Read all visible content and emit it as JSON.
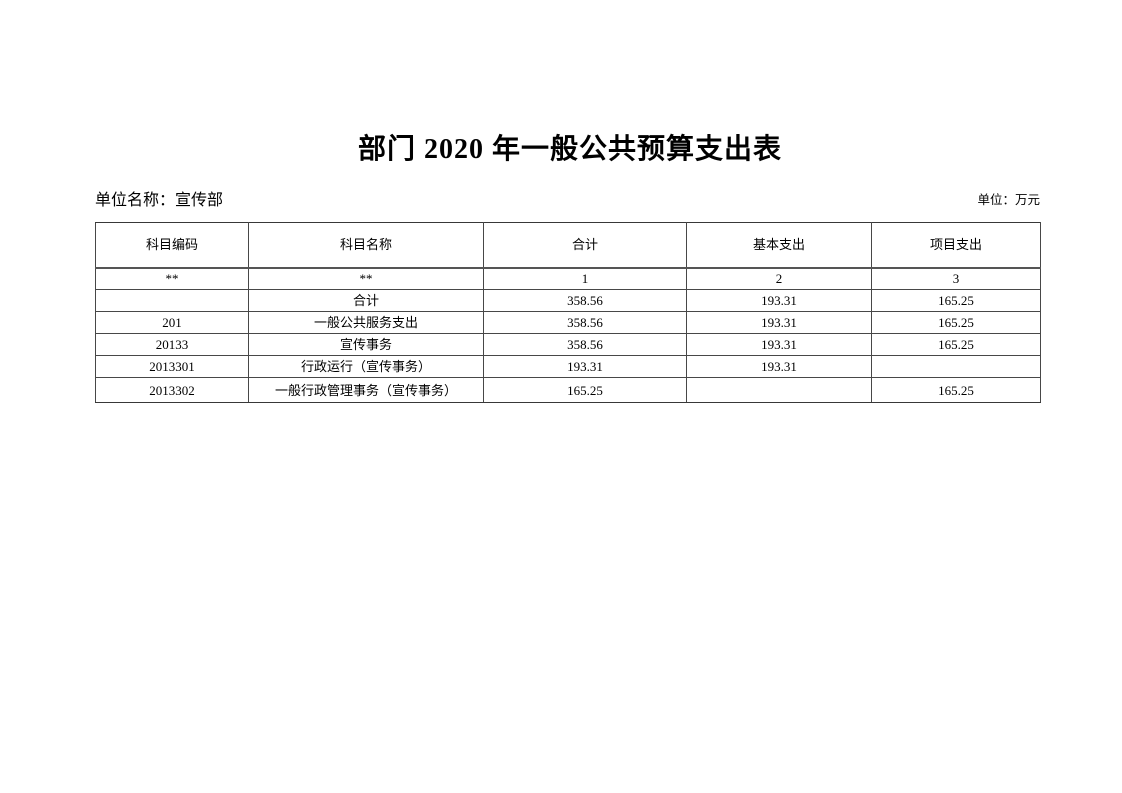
{
  "page": {
    "title": "部门 2020 年一般公共预算支出表",
    "unit_name": "单位名称：宣传部",
    "unit_measure": "单位：万元"
  },
  "table": {
    "headers": [
      "科目编码",
      "科目名称",
      "合计",
      "基本支出",
      "项目支出"
    ],
    "column_index_row": [
      "**",
      "**",
      "1",
      "2",
      "3"
    ],
    "rows": [
      {
        "cells": [
          "",
          "合计",
          "358.56",
          "193.31",
          "165.25"
        ]
      },
      {
        "cells": [
          "201",
          "一般公共服务支出",
          "358.56",
          "193.31",
          "165.25"
        ]
      },
      {
        "cells": [
          "20133",
          "宣传事务",
          "358.56",
          "193.31",
          "165.25"
        ]
      },
      {
        "cells": [
          "2013301",
          "行政运行（宣传事务）",
          "193.31",
          "193.31",
          ""
        ]
      },
      {
        "cells": [
          "2013302",
          "一般行政管理事务（宣传事务）",
          "165.25",
          "",
          "165.25"
        ]
      }
    ]
  },
  "colors": {
    "page_background": "#ffffff",
    "text": "#000000",
    "table_border": "#474747"
  }
}
